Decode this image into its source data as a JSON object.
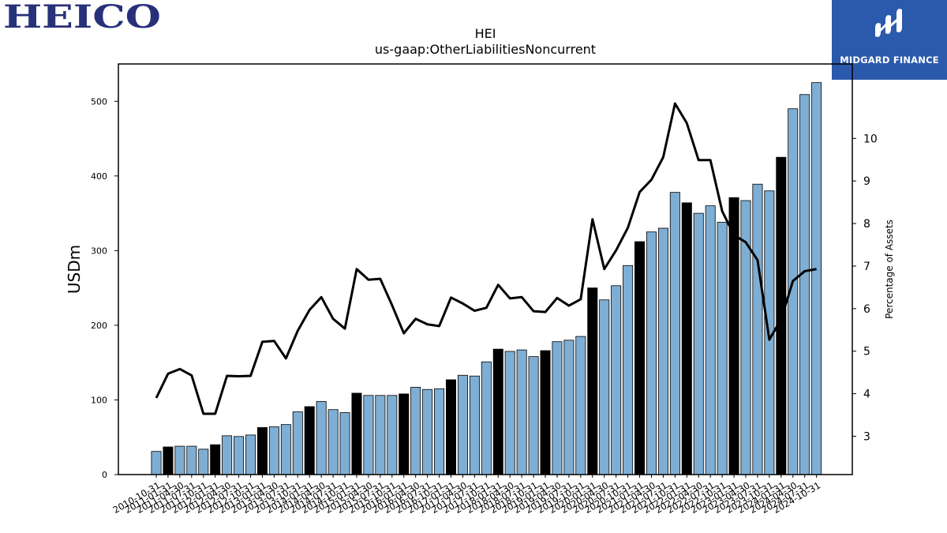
{
  "logos": {
    "left_text": "HEICO",
    "right_text": "MIDGARD FINANCE",
    "left_color": "#27317a",
    "right_color": "#2b5aad"
  },
  "chart_data": {
    "type": "bar",
    "title": "HEI",
    "subtitle": "us-gaap:OtherLiabilitiesNoncurrent",
    "ylabel": "USDm",
    "y2label": "Percentage of Assets",
    "ylim": [
      0,
      550
    ],
    "y2lim": [
      2.1,
      11.75
    ],
    "yticks": [
      0,
      100,
      200,
      300,
      400,
      500
    ],
    "y2ticks": [
      3,
      4,
      5,
      6,
      7,
      8,
      9,
      10
    ],
    "colors": {
      "bar": "#7eaed4",
      "bar_highlight": "#000000",
      "line": "#000000"
    },
    "categories": [
      "2010-10-31",
      "2011-01-31",
      "2011-04-30",
      "2011-07-31",
      "2011-10-31",
      "2012-01-31",
      "2012-04-30",
      "2012-07-31",
      "2012-10-31",
      "2013-01-31",
      "2013-04-30",
      "2013-07-31",
      "2013-10-31",
      "2014-01-31",
      "2014-04-30",
      "2014-07-31",
      "2014-10-31",
      "2015-01-31",
      "2015-04-30",
      "2015-07-31",
      "2015-10-31",
      "2016-01-31",
      "2016-04-30",
      "2016-07-31",
      "2016-10-31",
      "2017-01-31",
      "2017-04-30",
      "2017-07-31",
      "2017-10-31",
      "2018-01-31",
      "2018-04-30",
      "2018-07-31",
      "2018-10-31",
      "2019-01-31",
      "2019-04-30",
      "2019-07-31",
      "2019-10-31",
      "2020-01-31",
      "2020-04-30",
      "2020-07-31",
      "2020-10-31",
      "2021-01-31",
      "2021-04-30",
      "2021-07-31",
      "2021-10-31",
      "2022-01-31",
      "2022-04-30",
      "2022-07-31",
      "2022-10-31",
      "2023-01-31",
      "2023-04-30",
      "2023-07-31",
      "2023-10-31",
      "2024-01-31",
      "2024-04-30",
      "2024-07-31",
      "2024-10-31"
    ],
    "series": [
      {
        "type": "bar",
        "values": [
          31,
          37,
          38,
          38,
          34,
          40,
          52,
          51,
          53,
          63,
          64,
          67,
          84,
          91,
          98,
          87,
          83,
          109,
          106,
          106,
          106,
          108,
          117,
          114,
          115,
          127,
          133,
          132,
          151,
          168,
          165,
          167,
          158,
          166,
          178,
          180,
          185,
          250,
          234,
          253,
          280,
          312,
          325,
          330,
          378,
          364,
          350,
          360,
          338,
          371,
          367,
          389,
          380,
          425,
          490,
          509,
          525
        ],
        "highlight_indices": [
          1,
          5,
          9,
          13,
          17,
          21,
          25,
          29,
          33,
          37,
          41,
          45,
          49,
          53
        ]
      },
      {
        "type": "line",
        "axis": "right",
        "values": [
          3.9,
          4.47,
          4.58,
          4.43,
          3.53,
          3.53,
          4.42,
          4.41,
          4.42,
          5.22,
          5.24,
          4.83,
          5.48,
          5.97,
          6.27,
          5.76,
          5.53,
          6.93,
          6.68,
          6.7,
          6.08,
          5.42,
          5.76,
          5.63,
          5.59,
          6.26,
          6.12,
          5.95,
          6.02,
          6.56,
          6.24,
          6.27,
          5.94,
          5.92,
          6.25,
          6.07,
          6.22,
          8.1,
          6.93,
          7.37,
          7.9,
          8.74,
          9.03,
          9.56,
          10.82,
          10.36,
          9.49,
          9.49,
          8.29,
          7.73,
          7.56,
          7.14,
          5.27,
          5.75,
          6.65,
          6.88,
          6.93
        ]
      }
    ]
  }
}
